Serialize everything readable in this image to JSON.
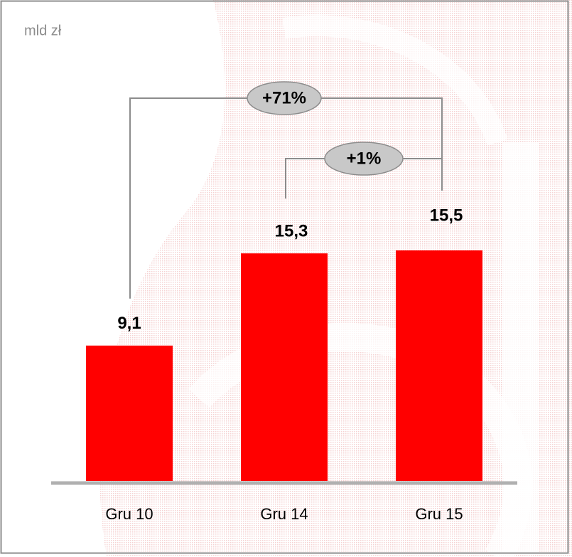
{
  "chart_data": {
    "type": "bar",
    "unit": "mld zł",
    "categories": [
      "Gru 10",
      "Gru 14",
      "Gru 15"
    ],
    "values": [
      9.1,
      15.3,
      15.5
    ],
    "value_labels": [
      "9,1",
      "15,3",
      "15,5"
    ],
    "color": "#ff0000",
    "annotations": [
      "+71%",
      "+1%"
    ]
  }
}
